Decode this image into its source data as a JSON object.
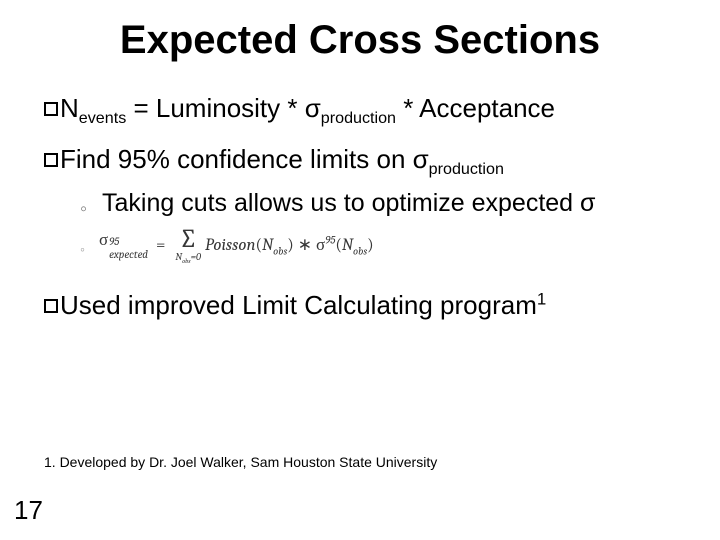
{
  "title": "Expected Cross Sections",
  "bullets": {
    "b1_pre": "N",
    "b1_sub": "events",
    "b1_mid": " = Luminosity * σ",
    "b1_sub2": "production",
    "b1_post": " * Acceptance",
    "b2_pre": "Find 95% confidence limits on σ",
    "b2_sub": "production",
    "sub1": "Taking cuts allows us to optimize expected σ",
    "b3_pre": "Used improved Limit Calculating program",
    "b3_sup": "1"
  },
  "equation": {
    "lhs_sigma": "σ",
    "lhs_sup": "95",
    "lhs_sub": "expected",
    "eq": "=",
    "sum_upper": "",
    "sum_lower": "N",
    "sum_lower2": "obs",
    "sum_lower3": "=0",
    "poisson": "Poisson",
    "nobs": "N",
    "nobs_sub": "obs",
    "star": "∗",
    "rhs_sigma": "σ",
    "rhs_sup": "95"
  },
  "footnote": "1. Developed by Dr. Joel Walker, Sam Houston State University",
  "page": "17",
  "colors": {
    "text": "#000000",
    "bg": "#ffffff",
    "eq": "#373737",
    "greydot": "#7f7f7f"
  },
  "fonts": {
    "title_family": "Trebuchet MS",
    "title_size_pt": 30,
    "body_family": "Verdana",
    "body_size_pt": 20,
    "footnote_size_pt": 11
  }
}
